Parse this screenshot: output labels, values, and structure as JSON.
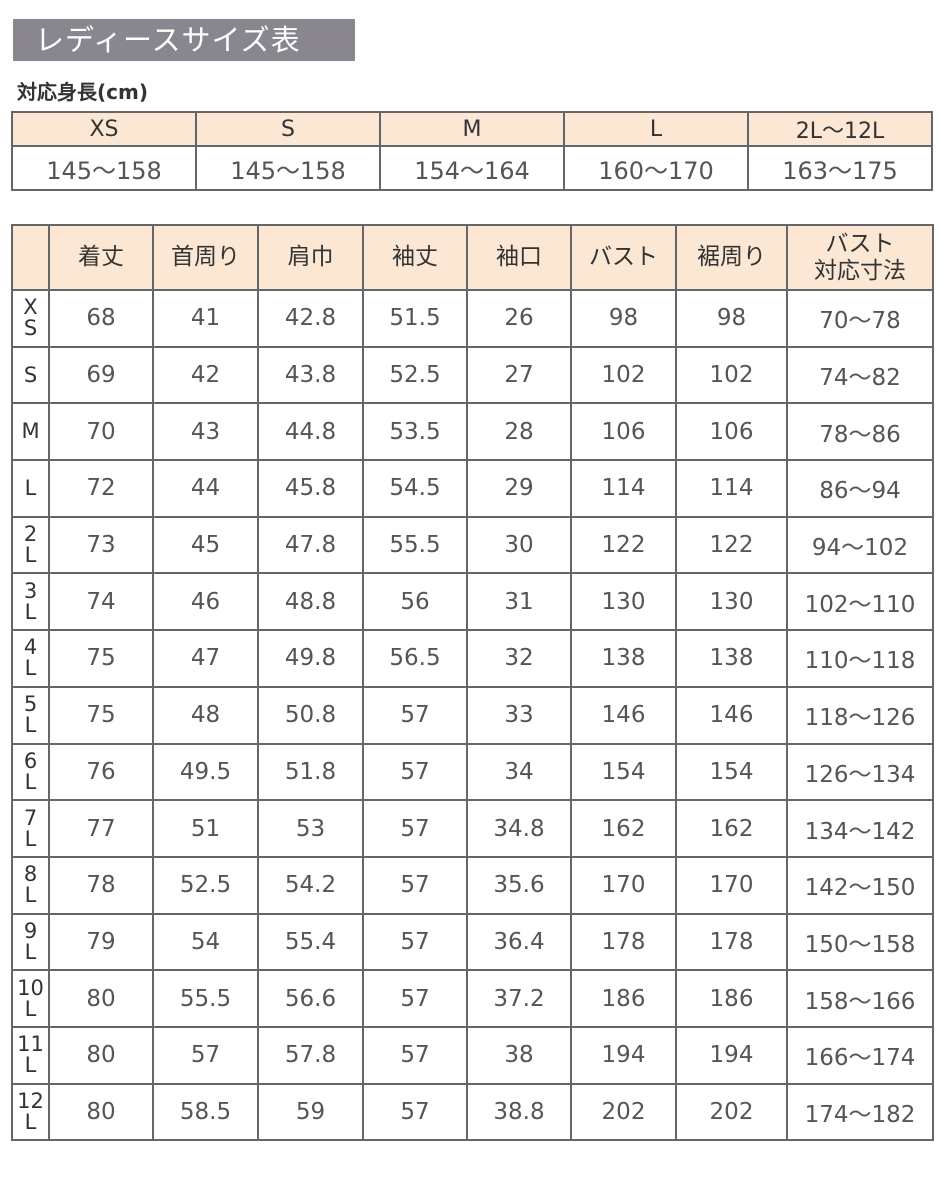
{
  "title": "レディースサイズ表",
  "height_table": {
    "label": "対応身長(cm)",
    "sizes": [
      "XS",
      "S",
      "M",
      "L",
      "2L～12L"
    ],
    "ranges": [
      "145～158",
      "145～158",
      "154～164",
      "160～170",
      "163～175"
    ]
  },
  "size_table": {
    "headers": [
      "",
      "着丈",
      "首周り",
      "肩巾",
      "袖丈",
      "袖口",
      "バスト",
      "裾周り",
      "バスト\n対応寸法"
    ],
    "rows": [
      {
        "size": [
          "X",
          "S"
        ],
        "values": [
          "68",
          "41",
          "42.8",
          "51.5",
          "26",
          "98",
          "98",
          "70～78"
        ]
      },
      {
        "size": [
          "S"
        ],
        "values": [
          "69",
          "42",
          "43.8",
          "52.5",
          "27",
          "102",
          "102",
          "74～82"
        ]
      },
      {
        "size": [
          "M"
        ],
        "values": [
          "70",
          "43",
          "44.8",
          "53.5",
          "28",
          "106",
          "106",
          "78～86"
        ]
      },
      {
        "size": [
          "L"
        ],
        "values": [
          "72",
          "44",
          "45.8",
          "54.5",
          "29",
          "114",
          "114",
          "86～94"
        ]
      },
      {
        "size": [
          "2",
          "L"
        ],
        "values": [
          "73",
          "45",
          "47.8",
          "55.5",
          "30",
          "122",
          "122",
          "94～102"
        ]
      },
      {
        "size": [
          "3",
          "L"
        ],
        "values": [
          "74",
          "46",
          "48.8",
          "56",
          "31",
          "130",
          "130",
          "102～110"
        ]
      },
      {
        "size": [
          "4",
          "L"
        ],
        "values": [
          "75",
          "47",
          "49.8",
          "56.5",
          "32",
          "138",
          "138",
          "110～118"
        ]
      },
      {
        "size": [
          "5",
          "L"
        ],
        "values": [
          "75",
          "48",
          "50.8",
          "57",
          "33",
          "146",
          "146",
          "118～126"
        ]
      },
      {
        "size": [
          "6",
          "L"
        ],
        "values": [
          "76",
          "49.5",
          "51.8",
          "57",
          "34",
          "154",
          "154",
          "126～134"
        ]
      },
      {
        "size": [
          "7",
          "L"
        ],
        "values": [
          "77",
          "51",
          "53",
          "57",
          "34.8",
          "162",
          "162",
          "134～142"
        ]
      },
      {
        "size": [
          "8",
          "L"
        ],
        "values": [
          "78",
          "52.5",
          "54.2",
          "57",
          "35.6",
          "170",
          "170",
          "142～150"
        ]
      },
      {
        "size": [
          "9",
          "L"
        ],
        "values": [
          "79",
          "54",
          "55.4",
          "57",
          "36.4",
          "178",
          "178",
          "150～158"
        ]
      },
      {
        "size": [
          "10",
          "L"
        ],
        "values": [
          "80",
          "55.5",
          "56.6",
          "57",
          "37.2",
          "186",
          "186",
          "158～166"
        ]
      },
      {
        "size": [
          "11",
          "L"
        ],
        "values": [
          "80",
          "57",
          "57.8",
          "57",
          "38",
          "194",
          "194",
          "166～174"
        ]
      },
      {
        "size": [
          "12",
          "L"
        ],
        "values": [
          "80",
          "58.5",
          "59",
          "57",
          "38.8",
          "202",
          "202",
          "174～182"
        ]
      }
    ]
  },
  "colors": {
    "title_bg": "#8a8690",
    "header_bg": "#fbe7d3",
    "border": "#666666"
  }
}
